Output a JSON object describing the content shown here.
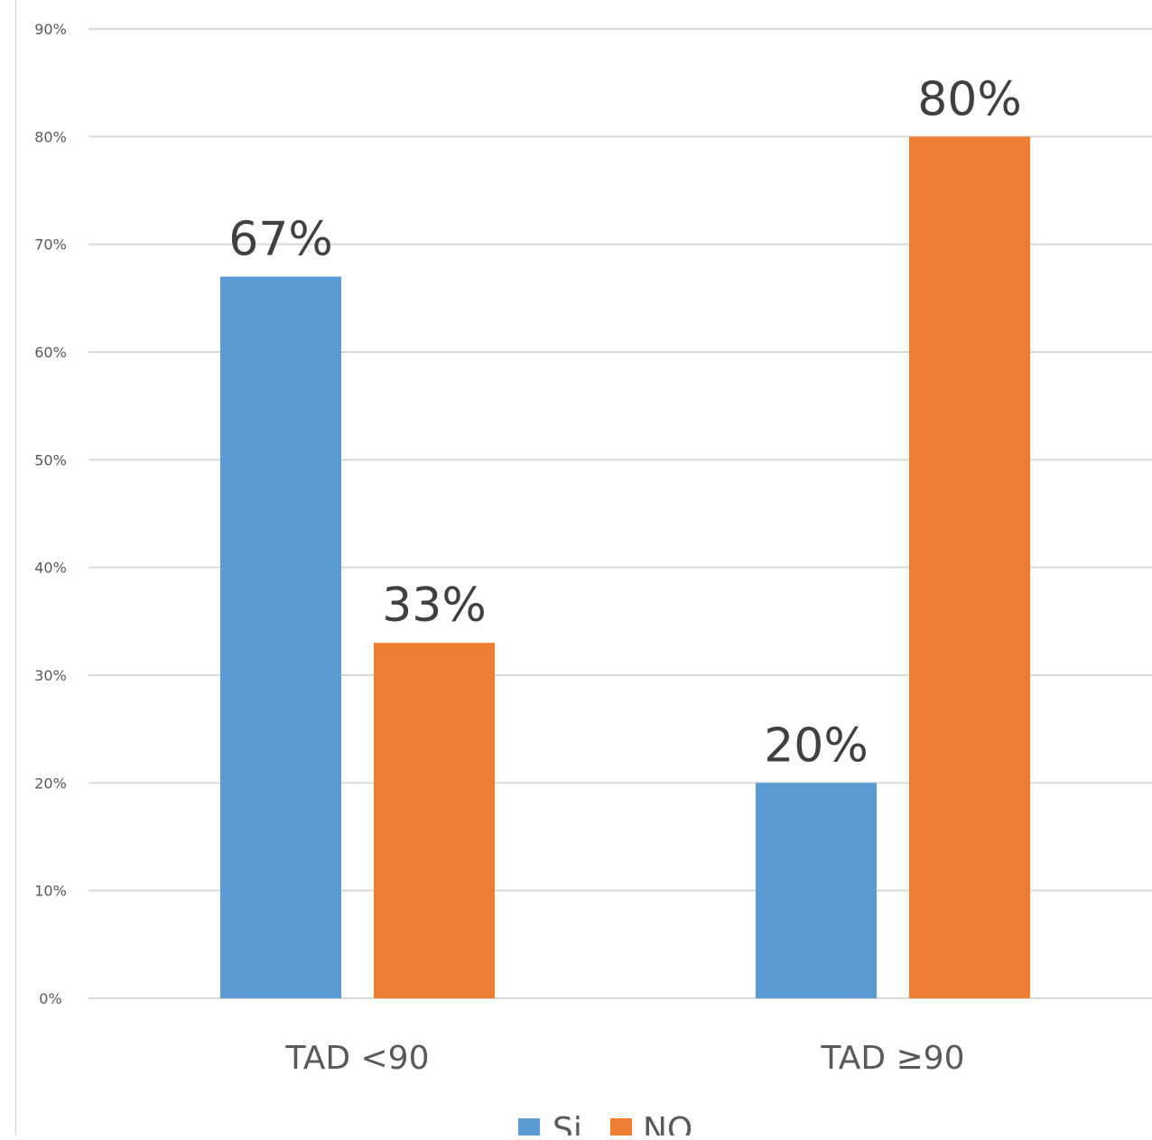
{
  "chart_data": {
    "type": "bar",
    "title": "",
    "xlabel": "",
    "ylabel": "",
    "categories": [
      "TAD <90",
      "TAD ≥90"
    ],
    "series": [
      {
        "name": "Si",
        "color": "#5b9bd5",
        "values": [
          67,
          20
        ],
        "labels": [
          "67%",
          "20%"
        ]
      },
      {
        "name": "NO",
        "color": "#ed7d31",
        "values": [
          33,
          80
        ],
        "labels": [
          "33%",
          "80%"
        ]
      }
    ],
    "ylim": [
      0,
      90
    ],
    "yticks": [
      0,
      10,
      20,
      30,
      40,
      50,
      60,
      70,
      80,
      90
    ],
    "ytick_labels": [
      "0%",
      "10%",
      "20%",
      "30%",
      "40%",
      "50%",
      "60%",
      "70%",
      "80%",
      "90%"
    ],
    "grid": true,
    "legend_position": "bottom"
  }
}
